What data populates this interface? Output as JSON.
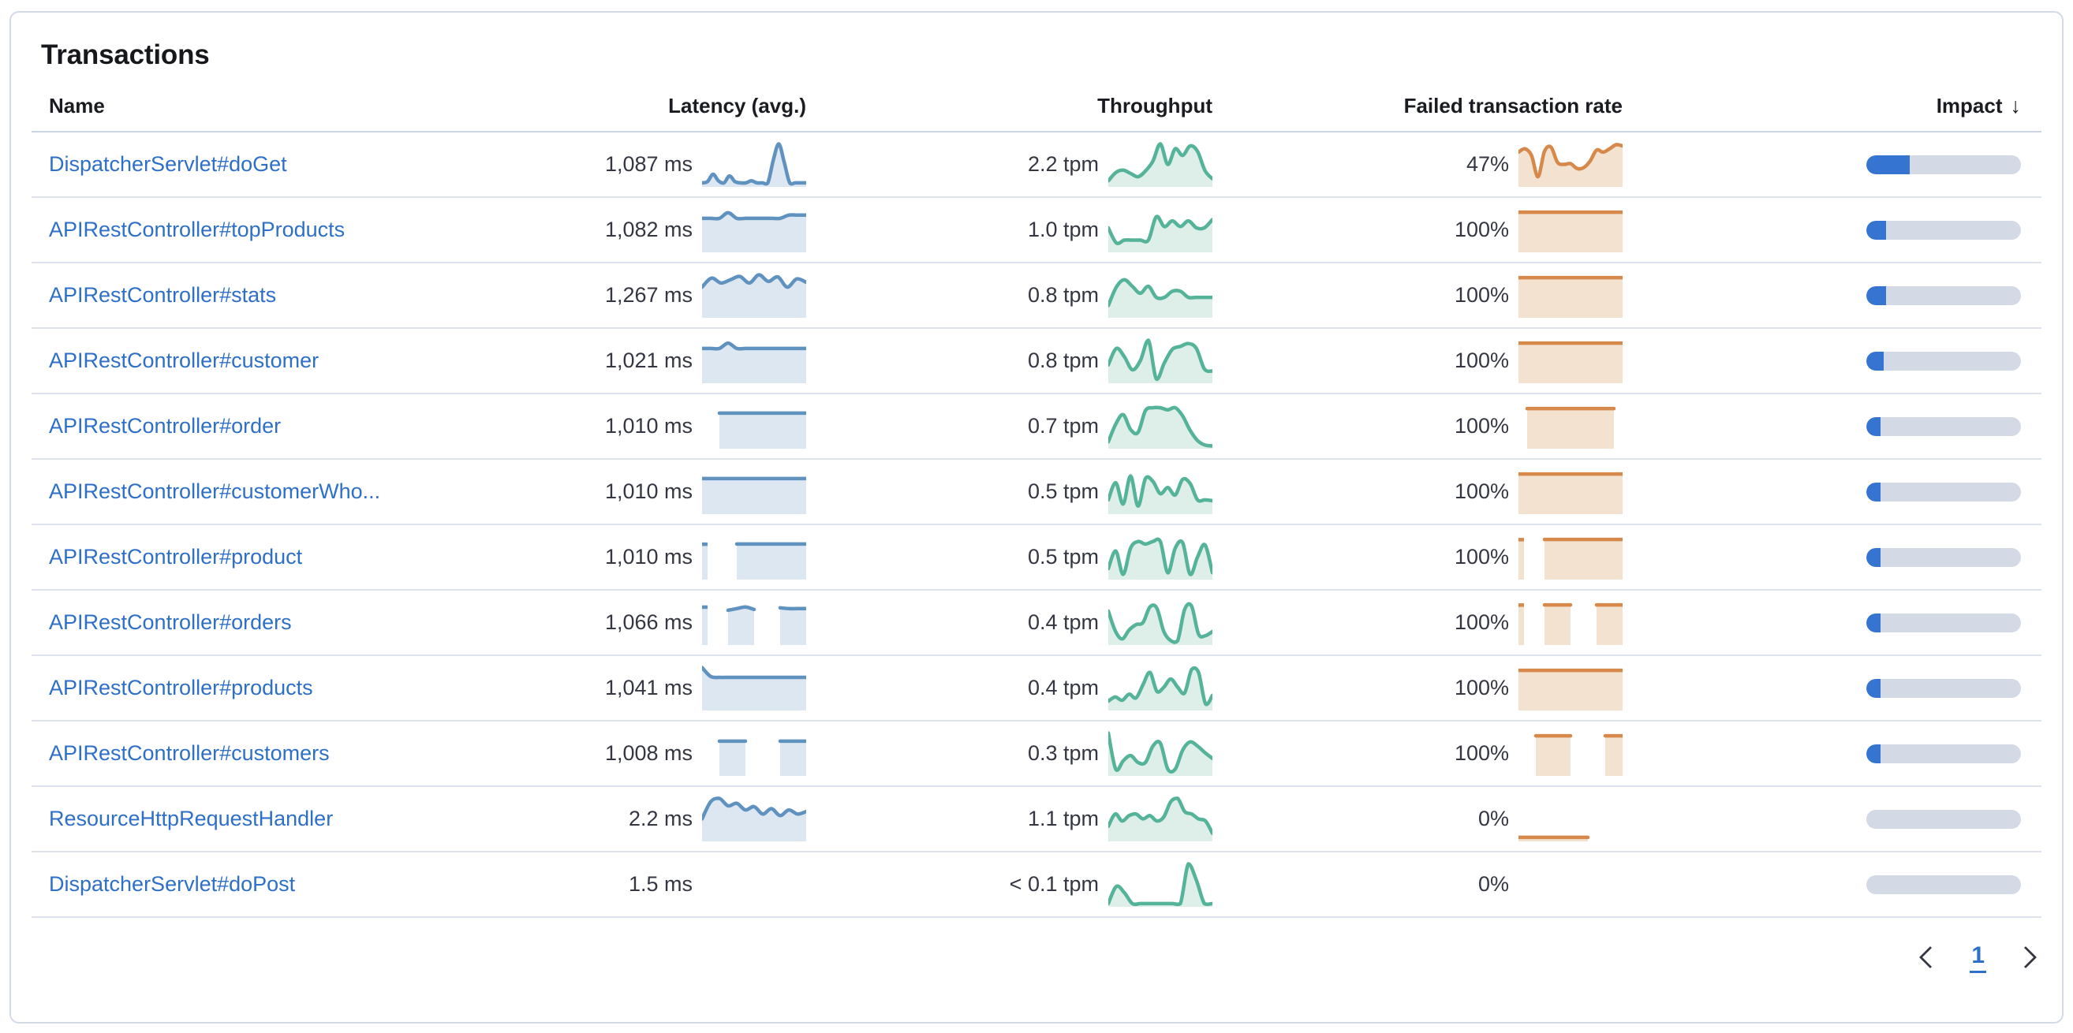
{
  "card": {
    "title": "Transactions"
  },
  "colors": {
    "latency_line": "#6092C0",
    "latency_fill": "#dde7f2",
    "throughput_line": "#54B399",
    "throughput_fill": "#ddefe8",
    "failed_line": "#d6894a",
    "failed_fill": "#f4e2d0",
    "impact_fill": "#3575d1",
    "impact_track": "#d3dae6",
    "link": "#2e6fc7",
    "text": "#343741",
    "divider": "#dde2ec"
  },
  "table": {
    "headers": {
      "name": "Name",
      "latency": "Latency (avg.)",
      "throughput": "Throughput",
      "failed": "Failed transaction rate",
      "impact": "Impact",
      "impact_sort_icon": "↓"
    },
    "rows": [
      {
        "name": "DispatcherServlet#doGet",
        "latency": "1,087 ms",
        "throughput": "2.2 tpm",
        "failed_rate": "47%",
        "impact_pct": 28,
        "latency_spark": [
          0.05,
          0.08,
          0.26,
          0.1,
          0.05,
          0.22,
          0.08,
          0.05,
          0.05,
          0.1,
          0.05,
          0.05,
          0.05,
          0.6,
          1.0,
          0.55,
          0.05,
          0.05,
          0.05,
          0.05
        ],
        "throughput_spark": [
          0.1,
          0.3,
          0.36,
          0.28,
          0.2,
          0.34,
          0.58,
          1.0,
          0.5,
          0.88,
          0.72,
          0.95,
          0.82,
          0.35,
          0.15
        ],
        "failed_spark": [
          0.8,
          0.88,
          0.72,
          0.2,
          0.82,
          0.92,
          0.55,
          0.5,
          0.52,
          0.4,
          0.42,
          0.58,
          0.85,
          0.8,
          0.88,
          0.98,
          0.95
        ]
      },
      {
        "name": "APIRestController#topProducts",
        "latency": "1,082 ms",
        "throughput": "1.0 tpm",
        "failed_rate": "100%",
        "impact_pct": 13,
        "latency_spark": [
          0.78,
          0.78,
          0.78,
          0.92,
          0.78,
          0.78,
          0.78,
          0.78,
          0.78,
          0.78,
          0.86,
          0.86,
          0.86
        ],
        "throughput_spark": [
          0.55,
          0.18,
          0.25,
          0.25,
          0.25,
          0.25,
          0.82,
          0.58,
          0.72,
          0.58,
          0.72,
          0.55,
          0.55,
          0.75
        ],
        "failed_spark": [
          0.93,
          0.93,
          0.93,
          0.93,
          0.93,
          0.93,
          0.93,
          0.93,
          0.93,
          0.93,
          0.93,
          0.93,
          0.93
        ]
      },
      {
        "name": "APIRestController#stats",
        "latency": "1,267 ms",
        "throughput": "0.8 tpm",
        "failed_rate": "100%",
        "impact_pct": 13,
        "latency_spark": [
          0.7,
          0.92,
          0.8,
          0.88,
          0.96,
          0.8,
          1.0,
          0.84,
          0.95,
          0.7,
          0.9,
          0.82
        ],
        "throughput_spark": [
          0.25,
          0.7,
          0.88,
          0.72,
          0.55,
          0.72,
          0.45,
          0.45,
          0.6,
          0.6,
          0.45,
          0.45,
          0.45,
          0.45
        ],
        "failed_spark": [
          0.93,
          0.93,
          0.93,
          0.93,
          0.93,
          0.93,
          0.93,
          0.93,
          0.93,
          0.93,
          0.93,
          0.93,
          0.93
        ]
      },
      {
        "name": "APIRestController#customer",
        "latency": "1,021 ms",
        "throughput": "0.8 tpm",
        "failed_rate": "100%",
        "impact_pct": 11,
        "latency_spark": [
          0.8,
          0.8,
          0.8,
          0.93,
          0.8,
          0.8,
          0.8,
          0.8,
          0.8,
          0.8,
          0.8,
          0.8,
          0.8
        ],
        "throughput_spark": [
          0.4,
          0.8,
          0.6,
          0.28,
          0.5,
          1.0,
          0.06,
          0.45,
          0.78,
          0.85,
          0.92,
          0.8,
          0.3,
          0.25
        ],
        "failed_spark": [
          0.93,
          0.93,
          0.93,
          0.93,
          0.93,
          0.93,
          0.93,
          0.93,
          0.93,
          0.93,
          0.93,
          0.93,
          0.93
        ]
      },
      {
        "name": "APIRestController#order",
        "latency": "1,010 ms",
        "throughput": "0.7 tpm",
        "failed_rate": "100%",
        "impact_pct": 9,
        "latency_spark": [
          null,
          null,
          0.82,
          0.82,
          0.82,
          0.82,
          0.82,
          0.82,
          0.82,
          0.82,
          0.82,
          0.82,
          0.82
        ],
        "throughput_spark": [
          0.12,
          0.55,
          0.78,
          0.42,
          0.35,
          0.88,
          0.95,
          0.95,
          0.9,
          0.95,
          0.75,
          0.4,
          0.15,
          0.04,
          0.02
        ],
        "failed_spark": [
          null,
          0.93,
          0.93,
          0.93,
          0.93,
          0.93,
          0.93,
          0.93,
          0.93,
          0.93,
          0.93,
          0.93,
          null
        ]
      },
      {
        "name": "APIRestController#customerWho...",
        "latency": "1,010 ms",
        "throughput": "0.5 tpm",
        "failed_rate": "100%",
        "impact_pct": 6,
        "latency_spark": [
          0.82,
          0.82,
          0.82,
          0.82,
          0.82,
          0.82,
          0.82,
          0.82,
          0.82,
          0.82,
          0.82,
          0.82,
          0.82
        ],
        "throughput_spark": [
          0.3,
          0.72,
          0.2,
          0.88,
          0.15,
          0.82,
          0.75,
          0.45,
          0.6,
          0.42,
          0.8,
          0.7,
          0.3,
          0.3,
          0.28
        ],
        "failed_spark": [
          0.93,
          0.93,
          0.93,
          0.93,
          0.93,
          0.93,
          0.93,
          0.93,
          0.93,
          0.93,
          0.93,
          0.93,
          0.93
        ]
      },
      {
        "name": "APIRestController#product",
        "latency": "1,010 ms",
        "throughput": "0.5 tpm",
        "failed_rate": "100%",
        "impact_pct": 6.5,
        "latency_spark": [
          0.82,
          null,
          null,
          null,
          0.82,
          0.82,
          0.82,
          0.82,
          0.82,
          0.82,
          0.82,
          0.82,
          0.82
        ],
        "throughput_spark": [
          0.22,
          0.65,
          0.08,
          0.72,
          0.88,
          0.82,
          0.88,
          0.88,
          0.12,
          0.72,
          0.85,
          0.08,
          0.5,
          0.8,
          0.12
        ],
        "failed_spark": [
          0.93,
          null,
          null,
          0.93,
          0.93,
          0.93,
          0.93,
          0.93,
          0.93,
          0.93,
          0.93,
          0.93,
          0.93
        ]
      },
      {
        "name": "APIRestController#orders",
        "latency": "1,066 ms",
        "throughput": "0.4 tpm",
        "failed_rate": "100%",
        "impact_pct": 5.5,
        "latency_spark": [
          0.88,
          null,
          null,
          0.8,
          0.84,
          0.88,
          0.82,
          null,
          null,
          0.86,
          0.84,
          0.84,
          0.84
        ],
        "throughput_spark": [
          0.78,
          0.3,
          0.1,
          0.32,
          0.45,
          0.5,
          0.88,
          0.85,
          0.28,
          0.06,
          0.06,
          0.82,
          0.9,
          0.22,
          0.18,
          0.28
        ],
        "failed_spark": [
          0.93,
          null,
          null,
          0.93,
          0.93,
          0.93,
          0.93,
          null,
          null,
          0.93,
          0.93,
          0.93,
          0.93
        ]
      },
      {
        "name": "APIRestController#products",
        "latency": "1,041 ms",
        "throughput": "0.4 tpm",
        "failed_rate": "100%",
        "impact_pct": 5,
        "latency_spark": [
          1.0,
          0.78,
          0.76,
          0.76,
          0.76,
          0.76,
          0.76,
          0.76,
          0.76,
          0.76,
          0.76,
          0.76,
          0.76
        ],
        "throughput_spark": [
          0.18,
          0.28,
          0.2,
          0.35,
          0.26,
          0.58,
          0.88,
          0.42,
          0.52,
          0.72,
          0.52,
          0.38,
          0.95,
          0.88,
          0.12,
          0.32
        ],
        "failed_spark": [
          0.93,
          0.93,
          0.93,
          0.93,
          0.93,
          0.93,
          0.93,
          0.93,
          0.93,
          0.93,
          0.93,
          0.93,
          0.93
        ]
      },
      {
        "name": "APIRestController#customers",
        "latency": "1,008 ms",
        "throughput": "0.3 tpm",
        "failed_rate": "100%",
        "impact_pct": 4,
        "latency_spark": [
          null,
          null,
          0.8,
          0.8,
          0.8,
          0.8,
          null,
          null,
          null,
          0.8,
          0.8,
          0.8,
          0.8
        ],
        "throughput_spark": [
          1.0,
          0.12,
          0.32,
          0.45,
          0.28,
          0.28,
          0.68,
          0.75,
          0.12,
          0.12,
          0.58,
          0.78,
          0.68,
          0.52,
          0.38
        ],
        "failed_spark": [
          null,
          null,
          0.93,
          0.93,
          0.93,
          0.93,
          0.93,
          null,
          null,
          null,
          0.93,
          0.93,
          0.93
        ]
      },
      {
        "name": "ResourceHttpRequestHandler",
        "latency": "2.2 ms",
        "throughput": "1.1 tpm",
        "failed_rate": "0%",
        "impact_pct": 0,
        "latency_spark": [
          0.5,
          0.92,
          1.0,
          0.82,
          0.88,
          0.72,
          0.8,
          0.62,
          0.75,
          0.58,
          0.72,
          0.62,
          0.68
        ],
        "throughput_spark": [
          0.32,
          0.62,
          0.45,
          0.58,
          0.62,
          0.5,
          0.58,
          0.45,
          0.55,
          0.92,
          1.0,
          0.68,
          0.62,
          0.5,
          0.45,
          0.15
        ],
        "failed_spark": [
          0.05,
          0.05,
          0.05,
          0.05,
          0.05,
          0.05,
          0.05,
          0.05,
          0.05,
          null,
          null,
          null,
          null
        ]
      },
      {
        "name": "DispatcherServlet#doPost",
        "latency": "1.5 ms",
        "throughput": "< 0.1 tpm",
        "failed_rate": "0%",
        "impact_pct": 0,
        "latency_spark": [],
        "throughput_spark": [
          0.03,
          0.45,
          0.3,
          0.03,
          0.03,
          0.03,
          0.03,
          0.03,
          0.03,
          0.03,
          1.0,
          0.6,
          0.03,
          0.03
        ],
        "failed_spark": []
      }
    ]
  },
  "pagination": {
    "current_page": "1"
  }
}
